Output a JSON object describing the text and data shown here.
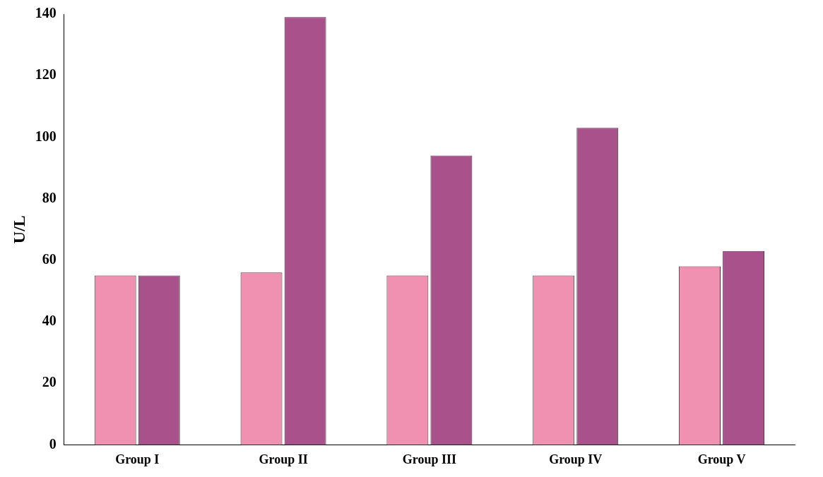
{
  "chart_data": {
    "type": "bar",
    "ylabel": "U/L",
    "categories": [
      "Group I",
      "Group II",
      "Group III",
      "Group IV",
      "Group V"
    ],
    "series": [
      {
        "color": "#f191b2",
        "values": [
          55,
          56,
          55,
          55,
          58
        ]
      },
      {
        "color": "#a8518b",
        "values": [
          55,
          139,
          94,
          103,
          63
        ]
      }
    ],
    "ylim": [
      0,
      140
    ],
    "yticks": [
      0,
      20,
      40,
      60,
      80,
      100,
      120,
      140
    ],
    "grid": false,
    "legend": false
  }
}
